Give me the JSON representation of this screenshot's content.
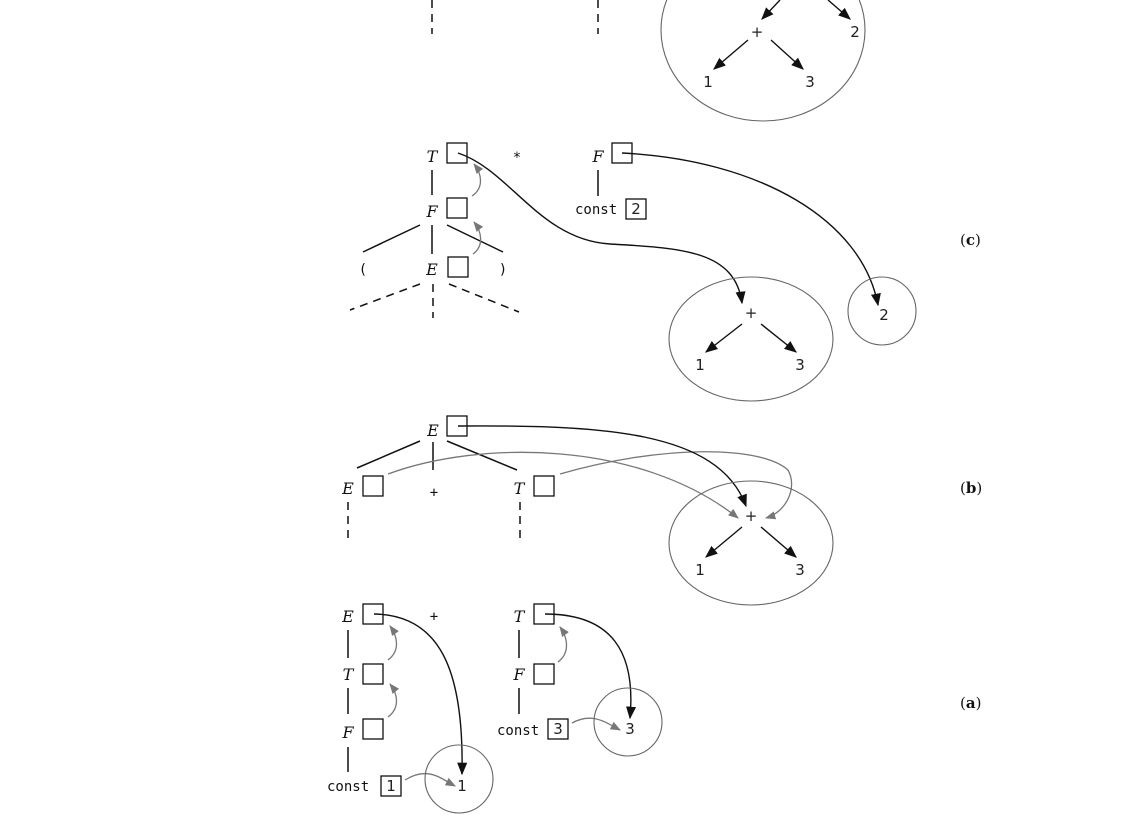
{
  "panels": {
    "a": "(a)",
    "b": "(b)",
    "c": "(c)"
  },
  "symbols": {
    "E": "E",
    "T": "T",
    "F": "F",
    "const": "const",
    "plus": "+",
    "times": "*",
    "lparen": "(",
    "rparen": ")"
  },
  "values": {
    "one": "1",
    "two": "2",
    "three": "3"
  },
  "colors": {
    "ink": "#111111",
    "pointer_gray": "#777777",
    "circle_gray": "#666666"
  }
}
